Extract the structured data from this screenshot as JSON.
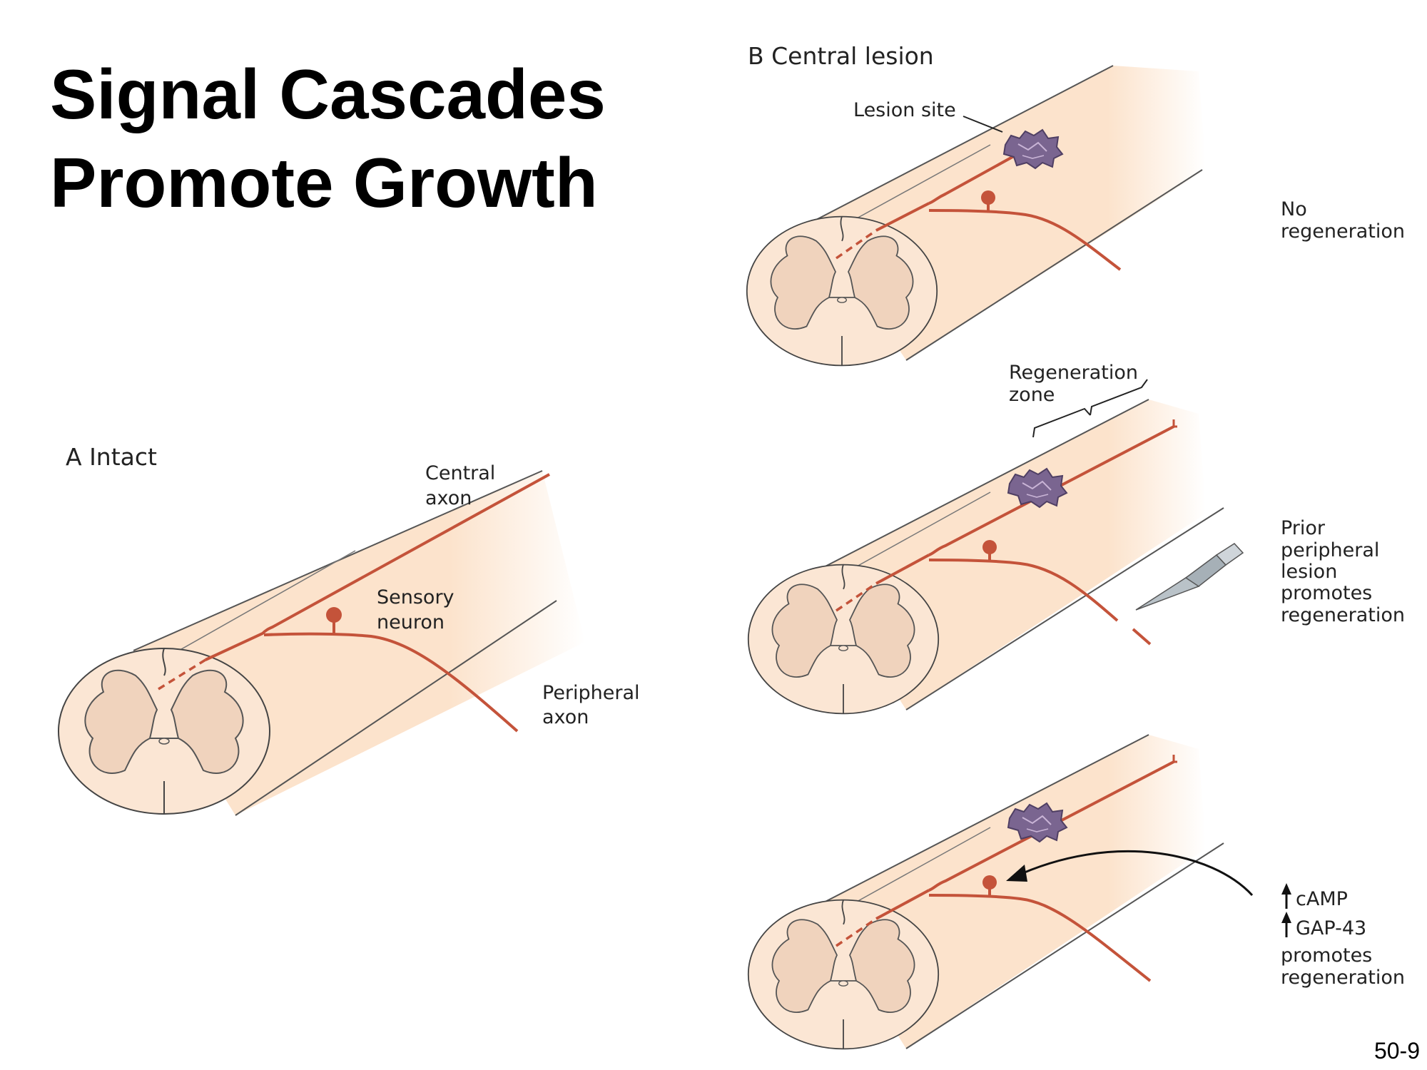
{
  "slide": {
    "title_line1": "Signal Cascades",
    "title_line2": "Promote Growth",
    "page_number": "50-9"
  },
  "panel_a": {
    "label": "A  Intact",
    "central_axon": [
      "Central",
      "axon"
    ],
    "sensory_neuron": [
      "Sensory",
      "neuron"
    ],
    "peripheral_axon": [
      "Peripheral",
      "axon"
    ]
  },
  "panel_b": {
    "label": "B  Central lesion",
    "lesion_site": "Lesion site",
    "no_regeneration": [
      "No",
      "regeneration"
    ],
    "regeneration_zone": [
      "Regeneration",
      "zone"
    ],
    "prior_peripheral": [
      "Prior",
      "peripheral",
      "lesion",
      "promotes",
      "regeneration"
    ],
    "camp": "cAMP",
    "gap43": "GAP-43",
    "camp_promotes": [
      "promotes",
      "regeneration"
    ]
  },
  "colors": {
    "cord_fill": "#fce3cc",
    "gray_matter": "#f0d3bd",
    "axon": "#c4533a",
    "lesion": "#7a6590",
    "outline": "#444444"
  }
}
